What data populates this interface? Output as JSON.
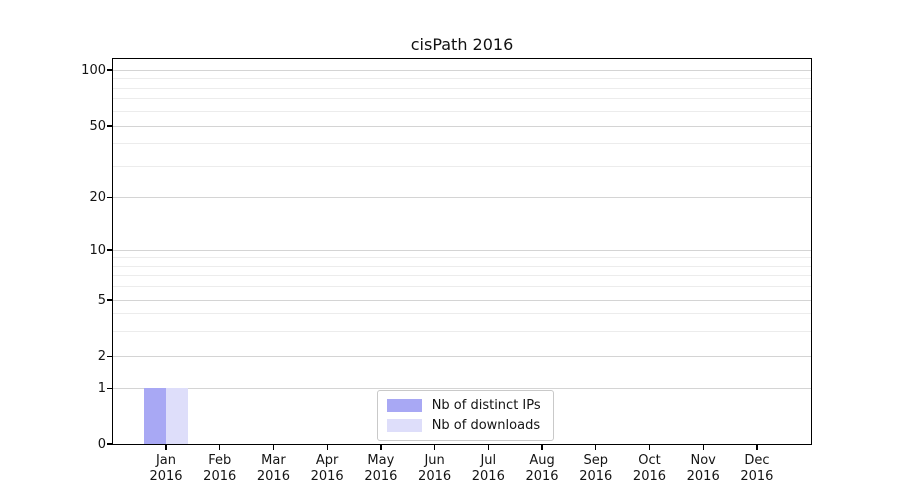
{
  "chart_data": {
    "type": "bar",
    "title": "cisPath 2016",
    "categories": [
      "Jan 2016",
      "Feb 2016",
      "Mar 2016",
      "Apr 2016",
      "May 2016",
      "Jun 2016",
      "Jul 2016",
      "Aug 2016",
      "Sep 2016",
      "Oct 2016",
      "Nov 2016",
      "Dec 2016"
    ],
    "x_tick_months": [
      "Jan",
      "Feb",
      "Mar",
      "Apr",
      "May",
      "Jun",
      "Jul",
      "Aug",
      "Sep",
      "Oct",
      "Nov",
      "Dec"
    ],
    "x_tick_year": "2016",
    "series": [
      {
        "name": "Nb of distinct IPs",
        "color": "#a8a8f4",
        "values": [
          1,
          0,
          0,
          0,
          0,
          0,
          0,
          0,
          0,
          0,
          0,
          0
        ]
      },
      {
        "name": "Nb of downloads",
        "color": "#dedefa",
        "values": [
          1,
          0,
          0,
          0,
          0,
          0,
          0,
          0,
          0,
          0,
          0,
          0
        ]
      }
    ],
    "yscale": "log-like",
    "y_tick_values": [
      0,
      1,
      2,
      5,
      10,
      20,
      50,
      100
    ],
    "y_minor_gridline_values": [
      3,
      4,
      6,
      7,
      8,
      9,
      30,
      40,
      60,
      70,
      80,
      90
    ],
    "ylim": [
      0,
      115
    ],
    "grid": true,
    "legend_position": "bottom-center-inside"
  },
  "colors": {
    "background": "#ffffff",
    "axis": "#000000",
    "major_grid": "#d4d4d4",
    "minor_grid": "#ececec",
    "text": "#141414",
    "legend_border": "#c9c9c9",
    "bar_distinct_ips": "#a8a8f4",
    "bar_downloads": "#dedefa"
  }
}
